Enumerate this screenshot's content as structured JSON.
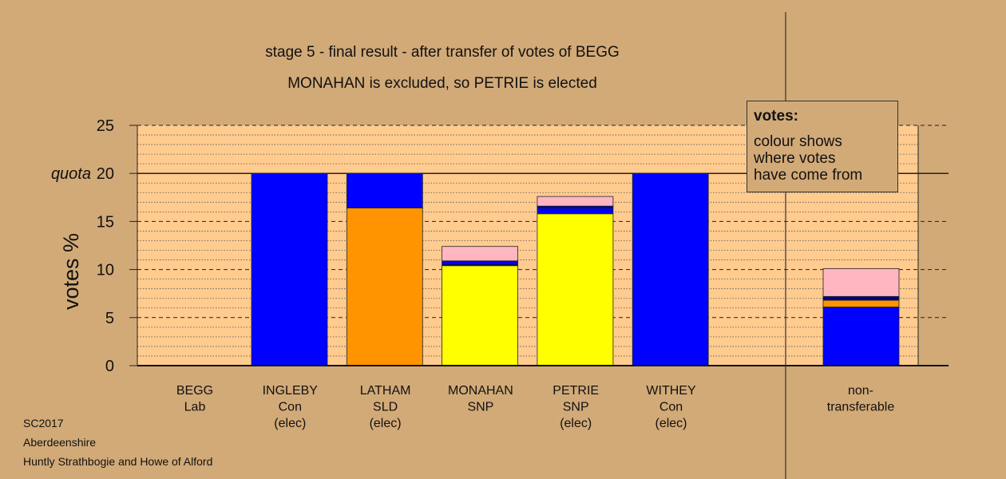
{
  "chart_data": {
    "type": "bar",
    "stacked": true,
    "title": "stage 5 - final result - after transfer of votes of BEGG",
    "subtitle": "MONAHAN is excluded, so PETRIE is elected",
    "ylabel": "votes %",
    "ylim": [
      0,
      25
    ],
    "yticks": [
      0,
      5,
      10,
      15,
      20,
      25
    ],
    "quota": {
      "value": 20,
      "label": "quota"
    },
    "grid": true,
    "categories": [
      {
        "lines": [
          "BEGG",
          "Lab",
          ""
        ]
      },
      {
        "lines": [
          "INGLEBY",
          "Con",
          "(elec)"
        ]
      },
      {
        "lines": [
          "LATHAM",
          "SLD",
          "(elec)"
        ]
      },
      {
        "lines": [
          "MONAHAN",
          "SNP",
          ""
        ]
      },
      {
        "lines": [
          "PETRIE",
          "SNP",
          "(elec)"
        ]
      },
      {
        "lines": [
          "WITHEY",
          "Con",
          "(elec)"
        ]
      },
      {
        "lines": [
          "non-",
          "transferable",
          ""
        ]
      }
    ],
    "stacks": [
      [],
      [
        {
          "color": "#0000ff",
          "value": 20.0
        }
      ],
      [
        {
          "color": "#ff9400",
          "value": 16.4
        },
        {
          "color": "#0000ff",
          "value": 3.6
        }
      ],
      [
        {
          "color": "#ffff00",
          "value": 10.4
        },
        {
          "color": "#00008b",
          "value": 0.2
        },
        {
          "color": "#0000ff",
          "value": 0.3
        },
        {
          "color": "#ffb6c1",
          "value": 1.5
        }
      ],
      [
        {
          "color": "#ffff00",
          "value": 15.8
        },
        {
          "color": "#0000ff",
          "value": 0.6
        },
        {
          "color": "#00008b",
          "value": 0.2
        },
        {
          "color": "#ffb6c1",
          "value": 1.0
        }
      ],
      [
        {
          "color": "#0000ff",
          "value": 20.0
        }
      ],
      [
        {
          "color": "#0000ff",
          "value": 6.1
        },
        {
          "color": "#ff9400",
          "value": 0.7
        },
        {
          "color": "#00008b",
          "value": 0.4
        },
        {
          "color": "#ffb6c1",
          "value": 2.9
        }
      ]
    ],
    "colors": {
      "background": "#d2aa78",
      "plot_area": "#ffcb8f",
      "Con": "#0000ff",
      "SLD": "#ff9400",
      "SNP": "#ffff00",
      "Lab": "#ffb6c1",
      "dark": "#00008b"
    }
  },
  "legend": {
    "title": "votes:",
    "lines": [
      "colour shows",
      "where votes",
      "have come from"
    ]
  },
  "footer": {
    "line1": "SC2017",
    "line2": "Aberdeenshire",
    "line3": "Huntly Strathbogie and Howe of Alford"
  }
}
